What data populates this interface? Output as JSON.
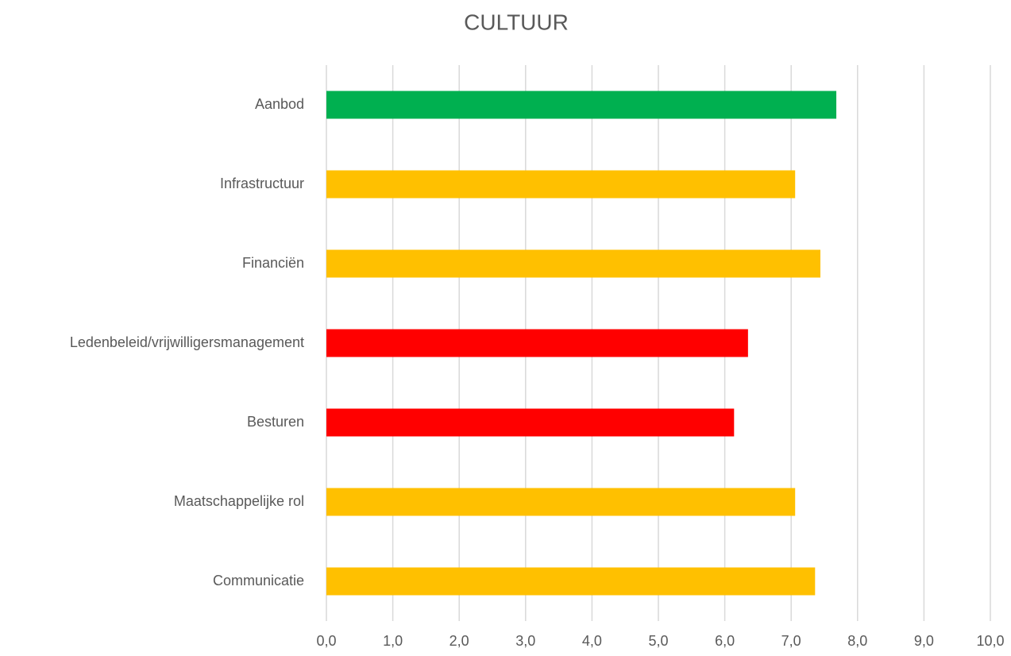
{
  "chart_data": {
    "type": "bar",
    "orientation": "horizontal",
    "title": "CULTUUR",
    "categories": [
      "Aanbod",
      "Infrastructuur",
      "Financiën",
      "Ledenbeleid/vrijwilligersmanagement",
      "Besturen",
      "Maatschappelijke rol",
      "Communicatie"
    ],
    "values": [
      7.68,
      7.06,
      7.44,
      6.35,
      6.14,
      7.06,
      7.36
    ],
    "colors": [
      "#00b050",
      "#ffc000",
      "#ffc000",
      "#ff0000",
      "#ff0000",
      "#ffc000",
      "#ffc000"
    ],
    "xlim": [
      0,
      10
    ],
    "xticks": [
      {
        "value": 0,
        "label": "0,0"
      },
      {
        "value": 1,
        "label": "1,0"
      },
      {
        "value": 2,
        "label": "2,0"
      },
      {
        "value": 3,
        "label": "3,0"
      },
      {
        "value": 4,
        "label": "4,0"
      },
      {
        "value": 5,
        "label": "5,0"
      },
      {
        "value": 6,
        "label": "6,0"
      },
      {
        "value": 7,
        "label": "7,0"
      },
      {
        "value": 8,
        "label": "8,0"
      },
      {
        "value": 9,
        "label": "9,0"
      },
      {
        "value": 10,
        "label": "10,0"
      }
    ],
    "grid": true
  }
}
